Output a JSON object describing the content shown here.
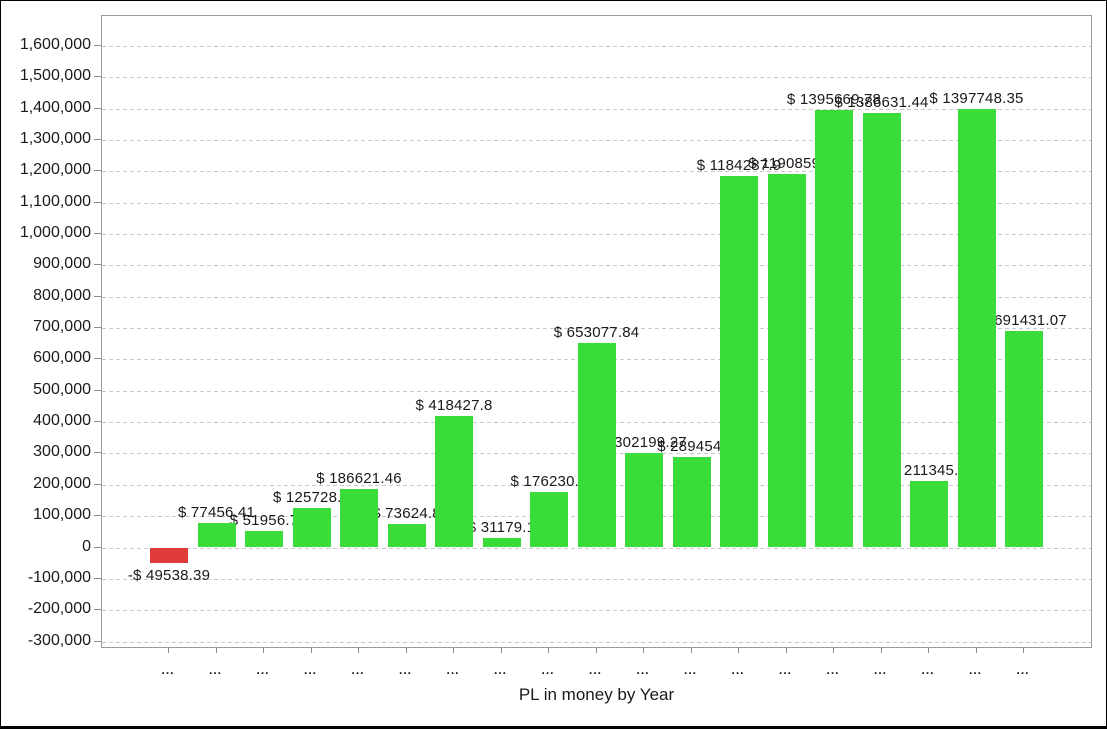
{
  "window": {
    "background": "#ffffff",
    "frame_color": "#000000"
  },
  "colors": {
    "positive_bar": "#39DC39",
    "negative_bar": "#E03B3B",
    "gridline": "#c9c9c9",
    "axis_border": "#9b9b9b",
    "tick": "#8c8c8c",
    "text": "#1a1a1a"
  },
  "chart_data": {
    "type": "bar",
    "title": "",
    "xlabel": "PL in money by Year",
    "ylabel": "",
    "ylim": [
      -300000,
      1600000
    ],
    "ytick_step": 100000,
    "grid": true,
    "legend": "none",
    "value_prefix": "$ ",
    "categories": [
      "...",
      "...",
      "...",
      "...",
      "...",
      "...",
      "...",
      "...",
      "...",
      "...",
      "...",
      "...",
      "...",
      "...",
      "...",
      "...",
      "...",
      "...",
      "..."
    ],
    "bars": [
      {
        "value": -49538.39,
        "label": "-$ 49538.39"
      },
      {
        "value": 77456.41,
        "label": "$ 77456.41"
      },
      {
        "value": 51956.7,
        "label": "$ 51956.7"
      },
      {
        "value": 125728.4,
        "label": "$ 125728.4"
      },
      {
        "value": 186621.46,
        "label": "$ 186621.46"
      },
      {
        "value": 73624.8,
        "label": "$ 73624.8"
      },
      {
        "value": 418427.8,
        "label": "$ 418427.8"
      },
      {
        "value": 31179.1,
        "label": "$ 31179.1"
      },
      {
        "value": 176230.7,
        "label": "$ 176230.7"
      },
      {
        "value": 653077.84,
        "label": "$ 653077.84"
      },
      {
        "value": 302199.27,
        "label": "$ 302199.27"
      },
      {
        "value": 289454,
        "label": "$ 289454."
      },
      {
        "value": 1184287.9,
        "label": "$ 1184287.9"
      },
      {
        "value": 1190859,
        "label": "$ 1190859."
      },
      {
        "value": 1395669.78,
        "label": "$ 1395669.78"
      },
      {
        "value": 1386631.44,
        "label": "$ 1386631.44"
      },
      {
        "value": 211345.2,
        "label": "$ 211345.2"
      },
      {
        "value": 1397748.35,
        "label": "$ 1397748.35"
      },
      {
        "value": 691431.07,
        "label": "$ 691431.07"
      }
    ],
    "yticks": [
      {
        "value": 1600000,
        "label": "1,600,000"
      },
      {
        "value": 1500000,
        "label": "1,500,000"
      },
      {
        "value": 1400000,
        "label": "1,400,000"
      },
      {
        "value": 1300000,
        "label": "1,300,000"
      },
      {
        "value": 1200000,
        "label": "1,200,000"
      },
      {
        "value": 1100000,
        "label": "1,100,000"
      },
      {
        "value": 1000000,
        "label": "1,000,000"
      },
      {
        "value": 900000,
        "label": "900,000"
      },
      {
        "value": 800000,
        "label": "800,000"
      },
      {
        "value": 700000,
        "label": "700,000"
      },
      {
        "value": 600000,
        "label": "600,000"
      },
      {
        "value": 500000,
        "label": "500,000"
      },
      {
        "value": 400000,
        "label": "400,000"
      },
      {
        "value": 300000,
        "label": "300,000"
      },
      {
        "value": 200000,
        "label": "200,000"
      },
      {
        "value": 100000,
        "label": "100,000"
      },
      {
        "value": 0,
        "label": "0"
      },
      {
        "value": -100000,
        "label": "-100,000"
      },
      {
        "value": -200000,
        "label": "-200,000"
      },
      {
        "value": -300000,
        "label": "-300,000"
      }
    ]
  }
}
